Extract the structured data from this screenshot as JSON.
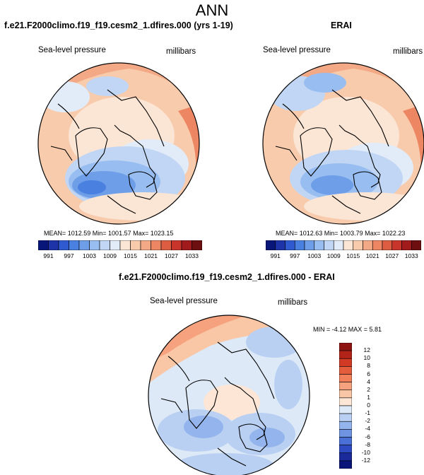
{
  "figure": {
    "title": "ANN",
    "panels": [
      {
        "title": "f.e21.F2000climo.f19_f19.cesm2_1.dfires.000 (yrs 1-19)",
        "variable": "Sea-level pressure",
        "units": "millibars",
        "stats": "MEAN= 1012.59  Min= 1001.57  Max= 1023.15"
      },
      {
        "title": "ERAI",
        "variable": "Sea-level pressure",
        "units": "millibars",
        "stats": "MEAN= 1012.63  Min= 1003.79  Max= 1022.23"
      }
    ],
    "abs_colorbar": {
      "labels": [
        "991",
        "997",
        "1003",
        "1009",
        "1015",
        "1021",
        "1027",
        "1033"
      ],
      "colors": [
        "#08167a",
        "#1f33a8",
        "#2f5ad0",
        "#4a80e0",
        "#6e9ee8",
        "#98bdf0",
        "#c0d6f4",
        "#e2ecf9",
        "#fbe6d6",
        "#f8cbac",
        "#f3a985",
        "#ec8663",
        "#dd5d43",
        "#c7352b",
        "#a21b1c",
        "#6d0e10"
      ]
    },
    "diff": {
      "title": "f.e21.F2000climo.f19_f19.cesm2_1.dfires.000 - ERAI",
      "variable": "Sea-level pressure",
      "units": "millibars",
      "stats": "MIN =  -4.12 MAX =   5.81",
      "colorbar": {
        "labels": [
          "12",
          "10",
          "8",
          "6",
          "4",
          "2",
          "1",
          "0",
          "-1",
          "-2",
          "-4",
          "-6",
          "-8",
          "-10",
          "-12"
        ],
        "colors": [
          "#8e1414",
          "#b32418",
          "#d13b26",
          "#e35d3c",
          "#f07f5a",
          "#f6a27e",
          "#f9c6a6",
          "#fde6d6",
          "#dde9f7",
          "#b9d0f2",
          "#93b4ec",
          "#6f94e2",
          "#4a70d8",
          "#2d4ac2",
          "#1a2a9a",
          "#0b1479"
        ]
      }
    }
  }
}
